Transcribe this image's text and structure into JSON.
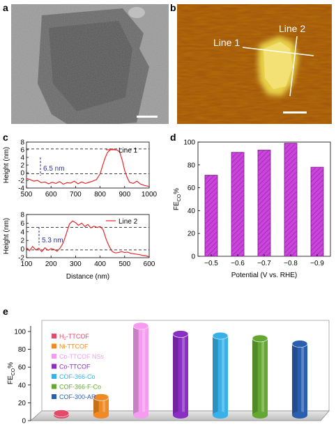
{
  "panels": {
    "a": {
      "letter": "a"
    },
    "b": {
      "letter": "b",
      "line1_label": "Line 1",
      "line2_label": "Line 2"
    },
    "c": {
      "letter": "c"
    },
    "d": {
      "letter": "d"
    },
    "e": {
      "letter": "e"
    }
  },
  "colors": {
    "bar_d": "#cc44dd",
    "line_c": "#e8262b",
    "annotation": "#2a2ab0"
  },
  "chart_data": [
    {
      "id": "c-top",
      "type": "line",
      "xlim": [
        500,
        1000
      ],
      "ylim": [
        -4,
        8
      ],
      "xticks": [
        500,
        600,
        700,
        800,
        900,
        1000
      ],
      "yticks": [
        -4,
        -2,
        0,
        2,
        4,
        6,
        8
      ],
      "ylabel": "Height (nm)",
      "xlabel": "",
      "legend": "top-right",
      "annotation": "6.5 nm",
      "ref_lines": [
        6.2,
        -0.3
      ],
      "series": [
        {
          "name": "Line 1",
          "color": "#e8262b",
          "x": [
            500,
            515,
            530,
            545,
            560,
            575,
            590,
            605,
            620,
            635,
            650,
            665,
            680,
            695,
            710,
            725,
            740,
            755,
            770,
            785,
            800,
            810,
            820,
            830,
            840,
            850,
            860,
            870,
            880,
            890,
            900,
            910,
            920,
            935,
            950,
            965,
            980,
            1000
          ],
          "y": [
            -1.5,
            -1.8,
            -2.2,
            -2.0,
            -2.6,
            -2.4,
            -2.9,
            -2.5,
            -2.8,
            -2.3,
            -3.0,
            -2.6,
            -2.7,
            -2.2,
            -2.9,
            -2.4,
            -2.8,
            -2.5,
            -2.2,
            -1.8,
            -0.3,
            1.8,
            3.8,
            5.3,
            5.9,
            6.2,
            6.0,
            5.9,
            5.4,
            3.3,
            0.6,
            -1.2,
            -2.5,
            -2.8,
            -2.2,
            -3.0,
            -3.3,
            -3.6
          ]
        }
      ]
    },
    {
      "id": "c-bottom",
      "type": "line",
      "xlim": [
        100,
        600
      ],
      "ylim": [
        -2,
        8
      ],
      "xticks": [
        100,
        200,
        300,
        400,
        500,
        600
      ],
      "yticks": [
        -2,
        0,
        2,
        4,
        6,
        8
      ],
      "ylabel": "Height (nm)",
      "xlabel": "Distance (nm)",
      "legend": "top-right",
      "annotation": "5.3 nm",
      "ref_lines": [
        5.0,
        -0.2
      ],
      "series": [
        {
          "name": "Line 2",
          "color": "#e8262b",
          "x": [
            100,
            112,
            125,
            138,
            150,
            162,
            175,
            188,
            200,
            212,
            225,
            238,
            250,
            262,
            275,
            288,
            300,
            312,
            325,
            338,
            350,
            362,
            375,
            388,
            400,
            412,
            425,
            438,
            450,
            462,
            475,
            488,
            500,
            512,
            525,
            538,
            550,
            562,
            575,
            588,
            600
          ],
          "y": [
            0.3,
            -0.4,
            0.6,
            -0.2,
            0.2,
            -0.6,
            0.3,
            -0.3,
            0.1,
            -0.1,
            -0.5,
            0.3,
            1.5,
            3.5,
            5.8,
            6.5,
            6.1,
            5.5,
            6.0,
            5.2,
            5.7,
            4.9,
            5.3,
            5.0,
            5.2,
            4.5,
            2.2,
            0.5,
            -0.6,
            -0.9,
            -0.8,
            -0.6,
            -0.8,
            -0.7,
            -1.0,
            -1.1,
            -1.2,
            -1.3,
            -1.5,
            -1.6,
            -1.8
          ]
        }
      ]
    },
    {
      "id": "d",
      "type": "bar",
      "categories": [
        "−0.5",
        "−0.6",
        "−0.7",
        "−0.8",
        "−0.9"
      ],
      "values": [
        71,
        91,
        93,
        99,
        78
      ],
      "ylim": [
        0,
        100
      ],
      "yticks": [
        0,
        20,
        40,
        60,
        80,
        100
      ],
      "xlabel": "Potential (V vs. RHE)",
      "ylabel": "FE",
      "ylabel_sub": "CO",
      "ylabel_suffix": "%"
    },
    {
      "id": "e",
      "type": "bar",
      "categories": [
        "H2-TTCOF",
        "Ni-TTCOF",
        "Co-TTCOF NSs",
        "Co-TTCOF",
        "COF-366-Co",
        "COF-366-F-Co",
        "COF-300-AR"
      ],
      "values": [
        2,
        20,
        100,
        91,
        89,
        86,
        80
      ],
      "colors": [
        "#e34b6a",
        "#f08a24",
        "#f59cf0",
        "#8a2fc4",
        "#38b0e8",
        "#64a832",
        "#2a5fb0"
      ],
      "ylim": [
        0,
        100
      ],
      "yticks": [
        0,
        20,
        40,
        60,
        80,
        100
      ],
      "ylabel": "FE",
      "ylabel_sub": "CO",
      "ylabel_suffix": "%",
      "legend": [
        {
          "main": "H",
          "sub": "2",
          "rest": "-TTCOF"
        },
        {
          "main": "Ni-TTCOF",
          "sub": "",
          "rest": ""
        },
        {
          "main": "Co-TTCOF NSs",
          "sub": "",
          "rest": ""
        },
        {
          "main": "Co-TTCOF",
          "sub": "",
          "rest": ""
        },
        {
          "main": "COF-366-Co",
          "sub": "",
          "rest": ""
        },
        {
          "main": "COF-366-F-Co",
          "sub": "",
          "rest": ""
        },
        {
          "main": "COF-300-AR",
          "sub": "",
          "rest": ""
        }
      ]
    }
  ]
}
